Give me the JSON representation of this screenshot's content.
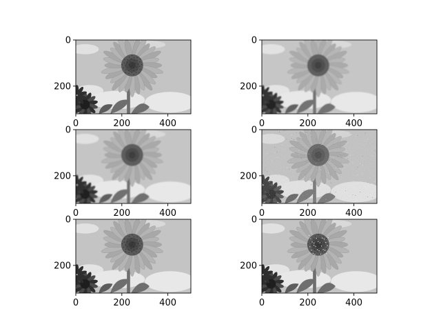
{
  "chart_data": {
    "type": "image-grid",
    "rows": 3,
    "cols": 2,
    "image_description": "grayscale sunflower photo",
    "xlim": [
      0,
      500
    ],
    "ylim": [
      320,
      0
    ],
    "xticks": [
      0,
      200,
      400
    ],
    "yticks": [
      0,
      200
    ],
    "xtick_labels": [
      "0",
      "200",
      "400"
    ],
    "ytick_labels": [
      "0",
      "200"
    ],
    "panels": [
      {
        "row": 0,
        "col": 0,
        "variant": "sharp",
        "brightness": 1.0
      },
      {
        "row": 0,
        "col": 1,
        "variant": "soft",
        "brightness": 1.06
      },
      {
        "row": 1,
        "col": 0,
        "variant": "soft",
        "brightness": 1.04
      },
      {
        "row": 1,
        "col": 1,
        "variant": "noisy",
        "brightness": 1.03
      },
      {
        "row": 2,
        "col": 0,
        "variant": "sharp",
        "brightness": 1.0
      },
      {
        "row": 2,
        "col": 1,
        "variant": "speckle",
        "brightness": 0.98
      }
    ],
    "colors": {
      "sky": "#c4c4c4",
      "cloud": "#e8e8e8",
      "petal": "#a8a8a8",
      "disk": "#5a5a5a",
      "disk_center": "#3a3a3a",
      "leaf": "#6e6e6e",
      "dark_flower": "#2e2e2e",
      "axis": "#000000"
    }
  }
}
